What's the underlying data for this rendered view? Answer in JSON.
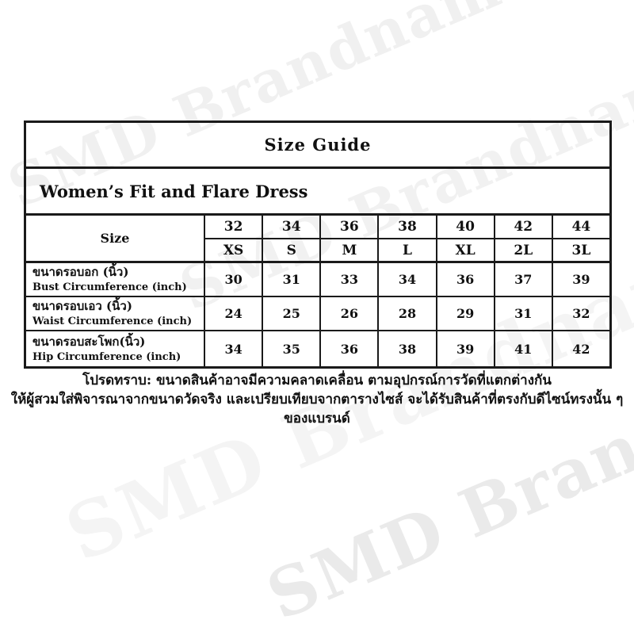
{
  "watermark": {
    "text": "SMD Brandname"
  },
  "table": {
    "title": "Size Guide",
    "product": "Women’s Fit and Flare Dress",
    "size_header": "Size",
    "size_numbers": [
      "32",
      "34",
      "36",
      "38",
      "40",
      "42",
      "44"
    ],
    "size_letters": [
      "XS",
      "S",
      "M",
      "L",
      "XL",
      "2L",
      "3L"
    ],
    "rows": [
      {
        "label_th": "ขนาดรอบอก (นิ้ว)",
        "label_en": "Bust Circumference (inch)",
        "values": [
          "30",
          "31",
          "33",
          "34",
          "36",
          "37",
          "39"
        ]
      },
      {
        "label_th": "ขนาดรอบเอว (นิ้ว)",
        "label_en": "Waist Circumference (inch)",
        "values": [
          "24",
          "25",
          "26",
          "28",
          "29",
          "31",
          "32"
        ]
      },
      {
        "label_th": "ขนาดรอบสะโพก(นิ้ว)",
        "label_en": "Hip Circumference (inch)",
        "values": [
          "34",
          "35",
          "36",
          "38",
          "39",
          "41",
          "42"
        ]
      }
    ]
  },
  "footer": {
    "line1": "โปรดทราบ: ขนาดสินค้าอาจมีความคลาดเคลื่อน ตามอุปกรณ์การวัดที่แตกต่างกัน",
    "line2": "ให้ผู้สวมใส่พิจารณาจากขนาดวัดจริง และเปรียบเทียบจากตารางไซส์ จะได้รับสินค้าที่ตรงกับดีไซน์ทรงนั้น ๆ ของแบรนด์"
  },
  "colors": {
    "text": "#111111",
    "border": "#1a1a1a",
    "background": "#ffffff",
    "watermark_gray": "#ededed"
  }
}
